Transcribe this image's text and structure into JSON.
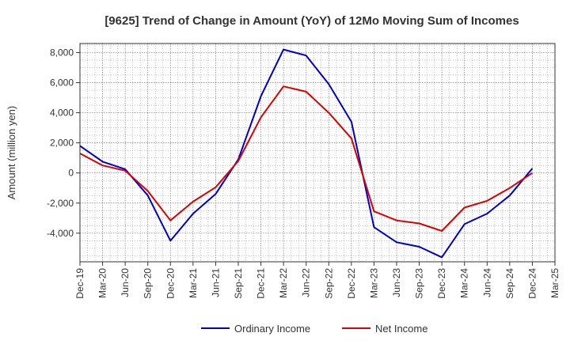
{
  "chart_data": {
    "type": "line",
    "title": "[9625]  Trend of Change in Amount (YoY) of 12Mo Moving Sum of Incomes",
    "xlabel": "",
    "ylabel": "Amount (million yen)",
    "ylim": [
      -5900,
      8600
    ],
    "yticks": [
      -4000,
      -2000,
      0,
      2000,
      4000,
      6000,
      8000
    ],
    "ytick_labels": [
      "-4,000",
      "-2,000",
      "0",
      "2,000",
      "4,000",
      "6,000",
      "8,000"
    ],
    "categories": [
      "Dec-19",
      "Mar-20",
      "Jun-20",
      "Sep-20",
      "Dec-20",
      "Mar-21",
      "Jun-21",
      "Sep-21",
      "Dec-21",
      "Mar-22",
      "Jun-22",
      "Sep-22",
      "Dec-22",
      "Mar-23",
      "Jun-23",
      "Sep-23",
      "Dec-23",
      "Mar-24",
      "Jun-24",
      "Sep-24",
      "Dec-24",
      "Mar-25"
    ],
    "grid": true,
    "legend_position": "bottom",
    "series": [
      {
        "name": "Ordinary Income",
        "color": "#0000cc",
        "values": [
          1800,
          750,
          250,
          -1500,
          -4500,
          -2700,
          -1400,
          900,
          5100,
          8200,
          7800,
          5900,
          3400,
          -3600,
          -4600,
          -4900,
          -5600,
          -3400,
          -2700,
          -1500,
          300,
          null
        ]
      },
      {
        "name": "Net Income",
        "color": "#dd0000",
        "values": [
          1300,
          500,
          150,
          -1200,
          -3150,
          -1900,
          -950,
          800,
          3700,
          5750,
          5400,
          4000,
          2300,
          -2550,
          -3150,
          -3350,
          -3850,
          -2300,
          -1850,
          -1000,
          0,
          null
        ]
      }
    ]
  }
}
